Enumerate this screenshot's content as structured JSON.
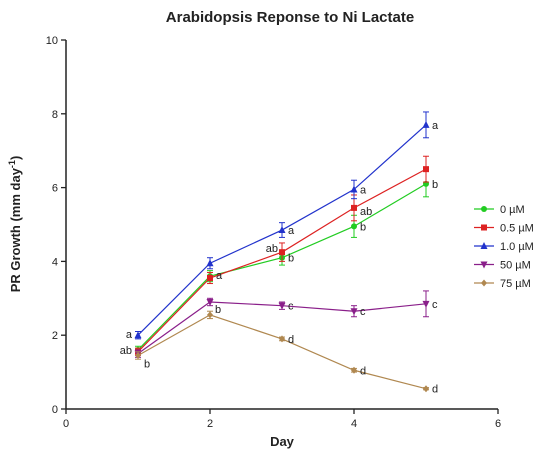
{
  "chart_data": {
    "type": "line",
    "title": "Arabidopsis Reponse to Ni Lactate",
    "xlabel": "Day",
    "ylabel_main": "PR Growth (mm day",
    "ylabel_sup": "-1",
    "ylabel_close": ")",
    "xlim": [
      0,
      6
    ],
    "ylim": [
      0,
      10
    ],
    "x_ticks": [
      0,
      2,
      4,
      6
    ],
    "y_ticks": [
      0,
      2,
      4,
      6,
      8,
      10
    ],
    "legend_position": "right",
    "x": [
      1,
      2,
      3,
      4,
      5
    ],
    "series": [
      {
        "name": "0 µM",
        "color": "#22cc22",
        "marker": "circle",
        "values": [
          1.6,
          3.6,
          4.1,
          4.95,
          6.1
        ],
        "errors": [
          0.1,
          0.15,
          0.2,
          0.3,
          0.35
        ],
        "labels": [
          "ab",
          "",
          "b",
          "b",
          "b"
        ]
      },
      {
        "name": "0.5 µM",
        "color": "#dd2222",
        "marker": "square",
        "values": [
          1.55,
          3.55,
          4.25,
          5.45,
          6.5
        ],
        "errors": [
          0.1,
          0.15,
          0.25,
          0.35,
          0.35
        ],
        "labels": [
          "",
          "",
          "ab",
          "ab",
          ""
        ]
      },
      {
        "name": "1.0 µM",
        "color": "#2233cc",
        "marker": "triangle-up",
        "values": [
          2.0,
          3.95,
          4.85,
          5.95,
          7.7
        ],
        "errors": [
          0.1,
          0.15,
          0.2,
          0.25,
          0.35
        ],
        "labels": [
          "a",
          "a",
          "a",
          "a",
          "a"
        ]
      },
      {
        "name": "50 µM",
        "color": "#8a1f8a",
        "marker": "triangle-down",
        "values": [
          1.5,
          2.9,
          2.8,
          2.65,
          2.85
        ],
        "errors": [
          0.1,
          0.1,
          0.1,
          0.15,
          0.35
        ],
        "labels": [
          "b",
          "",
          "c",
          "c",
          "c"
        ]
      },
      {
        "name": "75 µM",
        "color": "#b08850",
        "marker": "diamond",
        "values": [
          1.45,
          2.55,
          1.9,
          1.05,
          0.55
        ],
        "errors": [
          0.1,
          0.1,
          0.05,
          0.05,
          0.03
        ],
        "labels": [
          "",
          "b",
          "d",
          "d",
          "d"
        ]
      }
    ]
  }
}
